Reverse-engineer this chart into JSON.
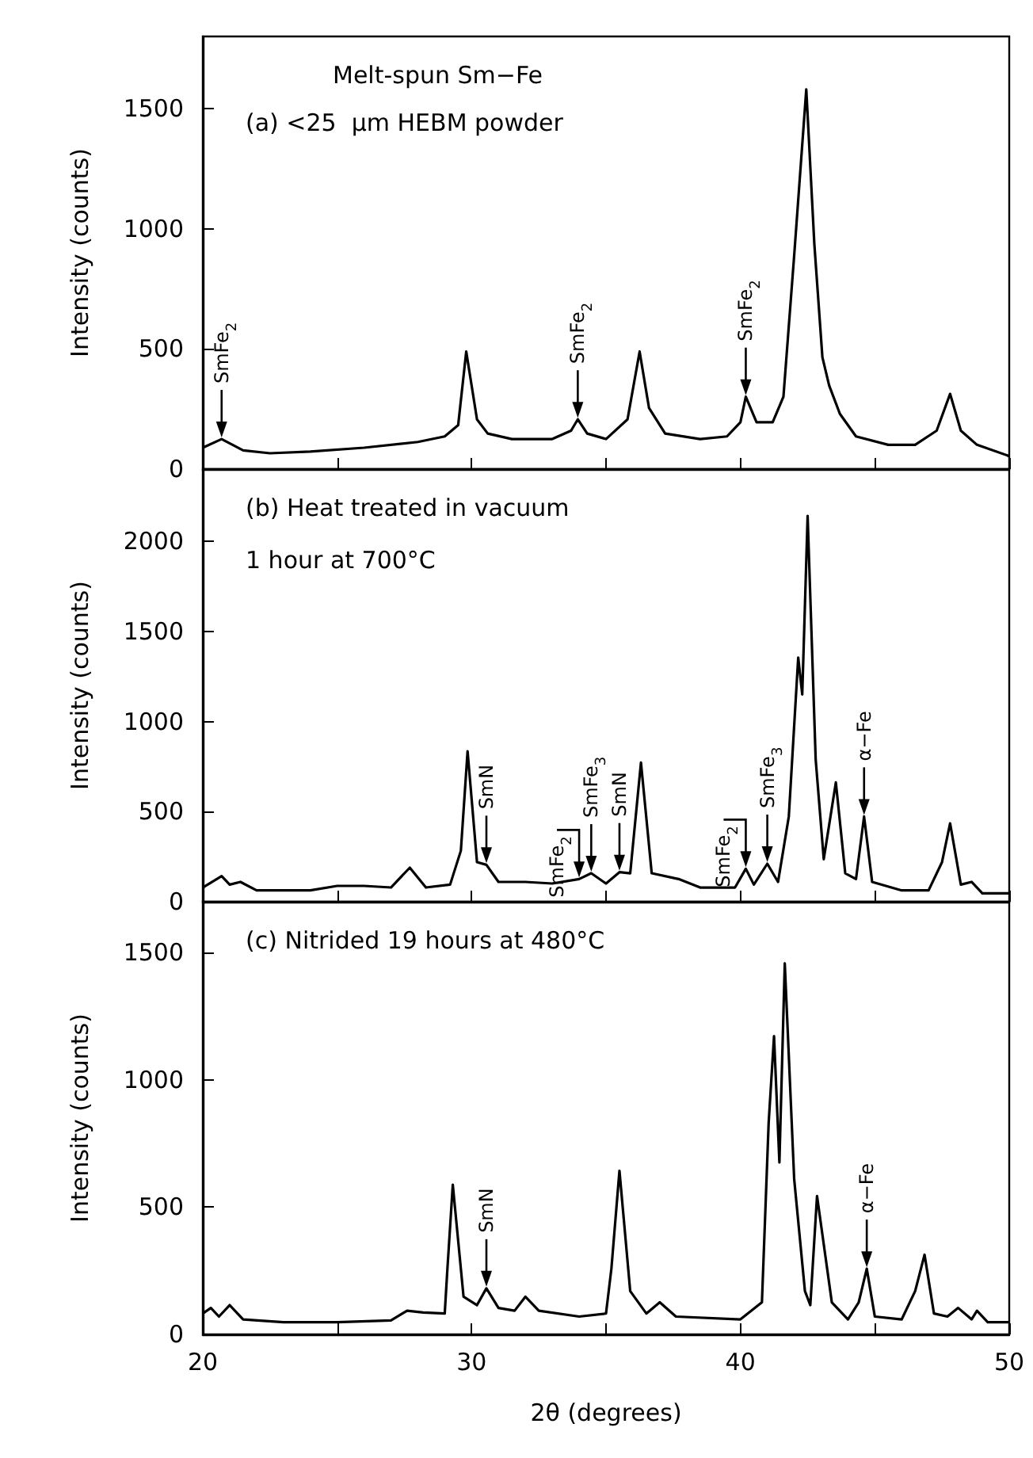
{
  "chart_data": [
    {
      "type": "line",
      "title": "Melt-spun Sm−Fe",
      "subtitle": "(a) <25  μm HEBM powder",
      "ylabel": "Intensity (counts)",
      "color": "#000000",
      "x": [
        20,
        20.7,
        21.5,
        22.5,
        24,
        26,
        28,
        29,
        29.5,
        29.8,
        30.2,
        30.6,
        31.5,
        33,
        33.7,
        33.95,
        34.3,
        35,
        35.8,
        36.25,
        36.6,
        37.2,
        38.5,
        39.5,
        40,
        40.2,
        40.6,
        41.2,
        41.6,
        42,
        42.45,
        42.75,
        43.05,
        43.3,
        43.7,
        44.3,
        45.5,
        46.5,
        47.3,
        47.8,
        48.2,
        48.8,
        50
      ],
      "values": [
        89,
        125,
        78,
        66,
        73,
        89,
        113,
        136,
        183,
        489,
        207,
        148,
        125,
        125,
        160,
        207,
        148,
        125,
        207,
        489,
        254,
        148,
        125,
        136,
        195,
        301,
        195,
        195,
        301,
        889,
        1580,
        936,
        465,
        348,
        230,
        136,
        101,
        101,
        160,
        313,
        160,
        101,
        54
      ],
      "xlim": [
        20,
        50
      ],
      "xticks": [
        {
          "value": 20,
          "label": null
        },
        {
          "value": 25,
          "label": null
        },
        {
          "value": 30,
          "label": null
        },
        {
          "value": 35,
          "label": null
        },
        {
          "value": 40,
          "label": null
        },
        {
          "value": 45,
          "label": null
        },
        {
          "value": 50,
          "label": null
        }
      ],
      "ylim": [
        0,
        1800
      ],
      "yticks": [
        0,
        500,
        1000,
        1500
      ],
      "tick_labels": "y",
      "annotations": [
        {
          "text": "SmFe$_{2}$",
          "x": 20.7,
          "y": 125
        },
        {
          "text": "SmFe$_{2}$",
          "x": 33.95,
          "y": 207
        },
        {
          "text": "SmFe$_{2}$",
          "x": 40.2,
          "y": 301
        }
      ]
    },
    {
      "type": "line",
      "title": "(b) Heat treated in vacuum",
      "subtitle": "1 hour at 700°C",
      "ylabel": "Intensity (counts)",
      "color": "#000000",
      "x": [
        20,
        20.7,
        21,
        21.4,
        22,
        24,
        25,
        26,
        27,
        27.7,
        28.3,
        29.2,
        29.6,
        29.85,
        30.2,
        30.55,
        31,
        32,
        33,
        34,
        34.45,
        35,
        35.5,
        35.9,
        36.3,
        36.7,
        37.7,
        38.5,
        39.8,
        40.2,
        40.5,
        41,
        41.4,
        41.8,
        42.15,
        42.3,
        42.5,
        42.8,
        43.1,
        43.55,
        43.9,
        44.3,
        44.6,
        44.9,
        46,
        47,
        47.5,
        47.8,
        48.2,
        48.6,
        49,
        50
      ],
      "values": [
        79,
        142,
        95,
        110,
        63,
        63,
        88,
        88,
        79,
        189,
        79,
        95,
        283,
        835,
        220,
        205,
        110,
        110,
        101,
        126,
        158,
        101,
        164,
        158,
        772,
        158,
        126,
        79,
        79,
        183,
        95,
        211,
        110,
        473,
        1355,
        1150,
        2140,
        788,
        236,
        662,
        158,
        126,
        473,
        110,
        63,
        63,
        220,
        435,
        95,
        110,
        47,
        47
      ],
      "xlim": [
        20,
        50
      ],
      "xticks": [
        {
          "value": 20,
          "label": null
        },
        {
          "value": 25,
          "label": null
        },
        {
          "value": 30,
          "label": null
        },
        {
          "value": 35,
          "label": null
        },
        {
          "value": 40,
          "label": null
        },
        {
          "value": 45,
          "label": null
        },
        {
          "value": 50,
          "label": null
        }
      ],
      "ylim": [
        0,
        2400
      ],
      "yticks": [
        0,
        500,
        1000,
        1500,
        2000
      ],
      "tick_labels": "y",
      "annotations": [
        {
          "text": "SmN",
          "x": 30.55,
          "y": 205
        },
        {
          "text": "SmFe$_{2}$",
          "x": 34,
          "y": 126
        },
        {
          "text": "SmFe$_{3}$",
          "x": 34.45,
          "y": 158
        },
        {
          "text": "SmN",
          "x": 35.5,
          "y": 164
        },
        {
          "text": "SmFe$_{2}$",
          "x": 40.2,
          "y": 183
        },
        {
          "text": "SmFe$_{3}$",
          "x": 41,
          "y": 211
        },
        {
          "text": "α−Fe",
          "x": 44.6,
          "y": 473
        }
      ]
    },
    {
      "type": "line",
      "title": "(c) Nitrided 19 hours at 480°C",
      "ylabel": "Intensity (counts)",
      "xlabel": "2θ (degrees)",
      "color": "#000000",
      "x": [
        20,
        20.3,
        20.6,
        21,
        21.5,
        23,
        25,
        27,
        27.6,
        28.2,
        29,
        29.1,
        29.3,
        29.7,
        30.2,
        30.55,
        31,
        31.6,
        32,
        32.5,
        34,
        35,
        35.2,
        35.5,
        35.9,
        36.5,
        37,
        37.6,
        40,
        40.8,
        41.05,
        41.25,
        41.45,
        41.65,
        42,
        42.4,
        42.6,
        42.85,
        43.4,
        44,
        44.4,
        44.7,
        45,
        46,
        46.5,
        46.85,
        47.2,
        47.7,
        48.1,
        48.6,
        48.8,
        49.2,
        50
      ],
      "values": [
        82,
        104,
        70,
        115,
        59,
        48,
        48,
        55,
        93,
        86,
        82,
        258,
        588,
        148,
        115,
        181,
        104,
        93,
        148,
        93,
        70,
        82,
        258,
        643,
        170,
        82,
        126,
        70,
        59,
        126,
        831,
        1172,
        676,
        1458,
        610,
        170,
        115,
        544,
        126,
        59,
        126,
        258,
        70,
        59,
        170,
        313,
        82,
        70,
        104,
        59,
        93,
        48,
        48
      ],
      "xlim": [
        20,
        50
      ],
      "xticks": [
        20,
        {
          "value": 25,
          "label": null
        },
        30,
        {
          "value": 35,
          "label": null
        },
        40,
        {
          "value": 45,
          "label": null
        },
        50
      ],
      "ylim": [
        0,
        1700
      ],
      "yticks": [
        0,
        500,
        1000,
        1500
      ],
      "annotations": [
        {
          "text": "SmN",
          "x": 30.55,
          "y": 181
        },
        {
          "text": "α−Fe",
          "x": 44.7,
          "y": 258
        }
      ]
    }
  ]
}
